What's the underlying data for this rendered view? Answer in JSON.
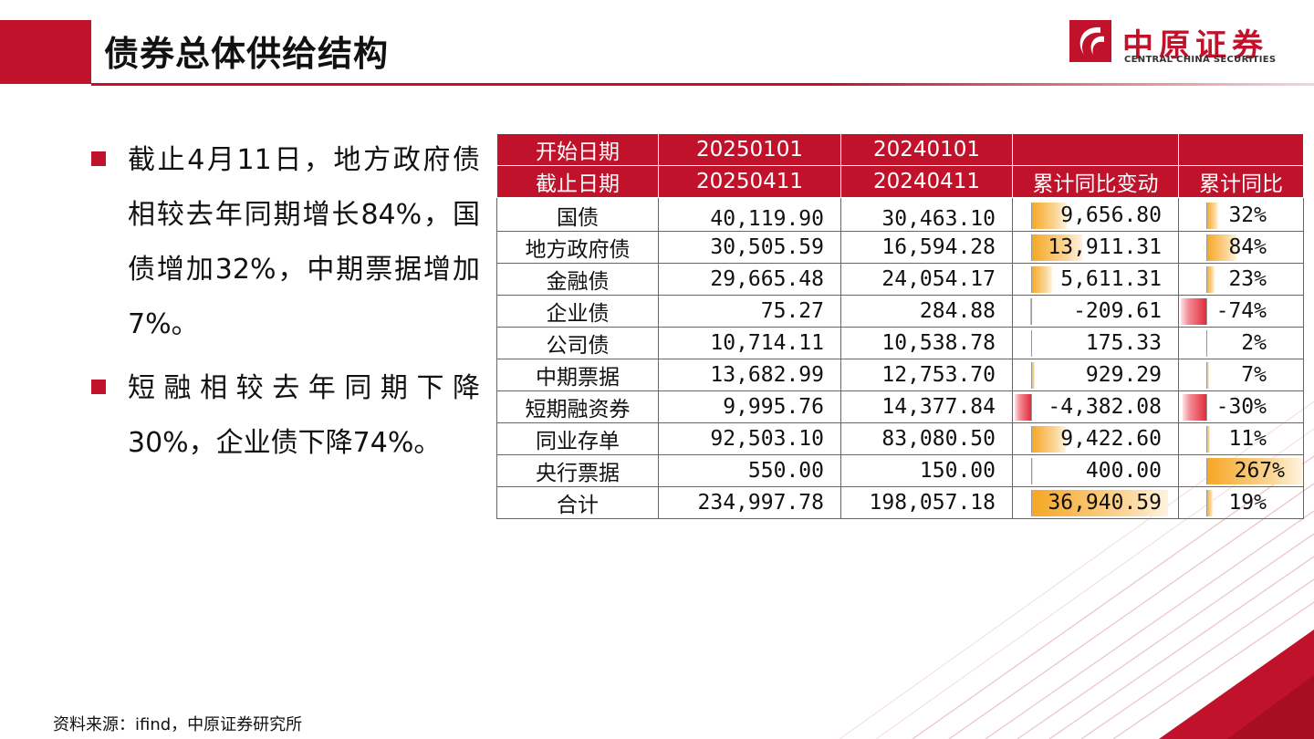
{
  "header": {
    "title": "债券总体供给结构"
  },
  "logo": {
    "name_cn": "中原证券",
    "name_en": "CENTRAL CHINA SECURITIES"
  },
  "bullets": [
    "截止4月11日，地方政府债相较去年同期增长84%，国债增加32%，中期票据增加7%。",
    "短融相较去年同期下降30%，企业债下降74%。"
  ],
  "table": {
    "header_row1": [
      "开始日期",
      "20250101",
      "20240101",
      "",
      ""
    ],
    "header_row2": [
      "截止日期",
      "20250411",
      "20240411",
      "累计同比变动",
      "累计同比"
    ],
    "rows": [
      {
        "name": "国债",
        "v2025": "40,119.90",
        "v2024": "30,463.10",
        "change": "9,656.80",
        "change_value": 9656.8,
        "yoy": "32%",
        "yoy_value": 0.32
      },
      {
        "name": "地方政府债",
        "v2025": "30,505.59",
        "v2024": "16,594.28",
        "change": "13,911.31",
        "change_value": 13911.31,
        "yoy": "84%",
        "yoy_value": 0.84
      },
      {
        "name": "金融债",
        "v2025": "29,665.48",
        "v2024": "24,054.17",
        "change": "5,611.31",
        "change_value": 5611.31,
        "yoy": "23%",
        "yoy_value": 0.23
      },
      {
        "name": "企业债",
        "v2025": "75.27",
        "v2024": "284.88",
        "change": "-209.61",
        "change_value": -209.61,
        "yoy": "-74%",
        "yoy_value": -0.74
      },
      {
        "name": "公司债",
        "v2025": "10,714.11",
        "v2024": "10,538.78",
        "change": "175.33",
        "change_value": 175.33,
        "yoy": "2%",
        "yoy_value": 0.02
      },
      {
        "name": "中期票据",
        "v2025": "13,682.99",
        "v2024": "12,753.70",
        "change": "929.29",
        "change_value": 929.29,
        "yoy": "7%",
        "yoy_value": 0.07
      },
      {
        "name": "短期融资券",
        "v2025": "9,995.76",
        "v2024": "14,377.84",
        "change": "-4,382.08",
        "change_value": -4382.08,
        "yoy": "-30%",
        "yoy_value": -0.3
      },
      {
        "name": "同业存单",
        "v2025": "92,503.10",
        "v2024": "83,080.50",
        "change": "9,422.60",
        "change_value": 9422.6,
        "yoy": "11%",
        "yoy_value": 0.11
      },
      {
        "name": "央行票据",
        "v2025": "550.00",
        "v2024": "150.00",
        "change": "400.00",
        "change_value": 400.0,
        "yoy": "267%",
        "yoy_value": 2.67
      },
      {
        "name": "合计",
        "v2025": "234,997.78",
        "v2024": "198,057.18",
        "change": "36,940.59",
        "change_value": 36940.59,
        "yoy": "19%",
        "yoy_value": 0.19
      }
    ]
  },
  "source": "资料来源：ifind，中原证券研究所",
  "colors": {
    "brand_red": "#c0122a",
    "bar_positive": "#f6a623",
    "bar_negative": "#e02b3b"
  }
}
